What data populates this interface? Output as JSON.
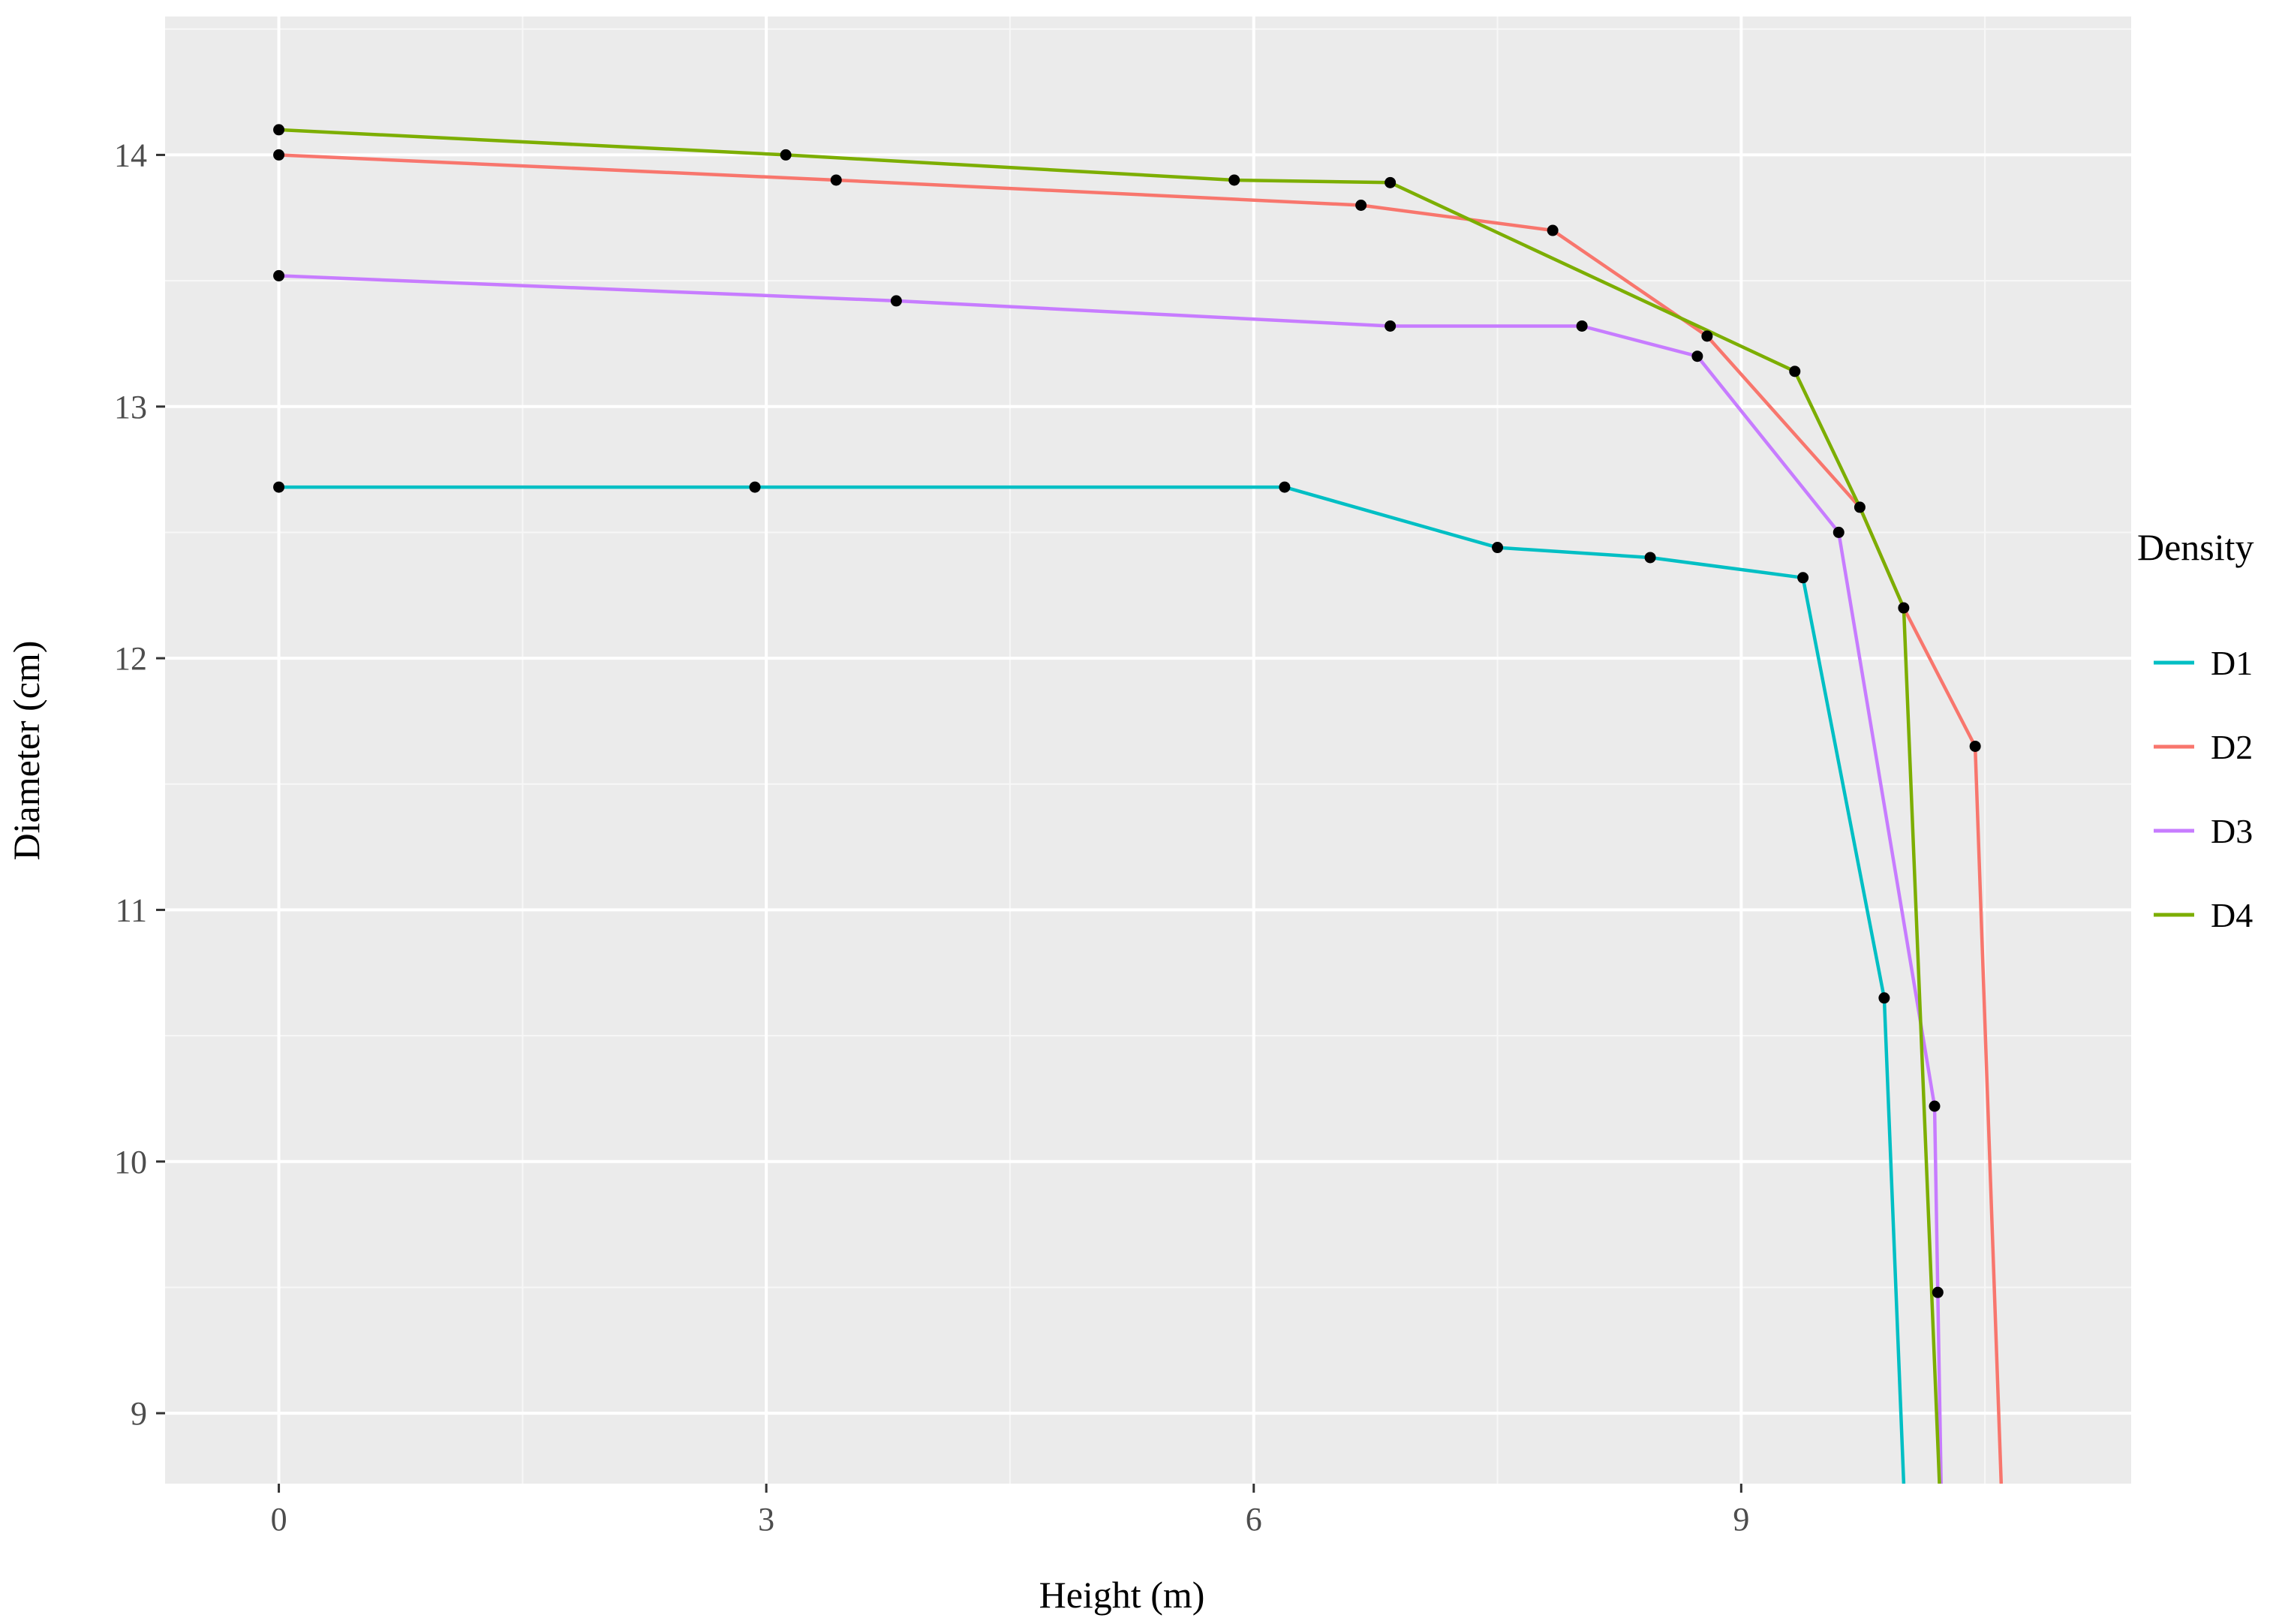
{
  "chart_data": {
    "type": "line",
    "xlabel": "Height (m)",
    "ylabel": "Diameter (cm)",
    "xlim": [
      -0.7,
      11.4
    ],
    "ylim": [
      8.72,
      14.55
    ],
    "x_ticks": [
      0,
      3,
      6,
      9
    ],
    "x_tick_labels": [
      "0",
      "3",
      "6",
      "9"
    ],
    "y_ticks": [
      9,
      10,
      11,
      12,
      13,
      14
    ],
    "y_tick_labels": [
      "9",
      "10",
      "11",
      "12",
      "13",
      "14"
    ],
    "grid": true,
    "legend": {
      "title": "Density",
      "placement": "right"
    },
    "series": [
      {
        "name": "D1",
        "color": "#00BFC4",
        "points": [
          [
            0,
            12.68
          ],
          [
            2.93,
            12.68
          ],
          [
            6.19,
            12.68
          ],
          [
            7.5,
            12.44
          ],
          [
            8.44,
            12.4
          ],
          [
            9.38,
            12.32
          ],
          [
            9.88,
            10.65
          ],
          [
            10.0,
            8.72
          ]
        ],
        "markers": [
          [
            0,
            12.68
          ],
          [
            2.93,
            12.68
          ],
          [
            6.19,
            12.68
          ],
          [
            7.5,
            12.44
          ],
          [
            8.44,
            12.4
          ],
          [
            9.38,
            12.32
          ],
          [
            9.88,
            10.65
          ]
        ]
      },
      {
        "name": "D2",
        "color": "#F8766D",
        "points": [
          [
            0,
            14.0
          ],
          [
            3.43,
            13.9
          ],
          [
            6.66,
            13.8
          ],
          [
            7.84,
            13.7
          ],
          [
            8.79,
            13.28
          ],
          [
            9.73,
            12.6
          ],
          [
            10.0,
            12.2
          ],
          [
            10.44,
            11.65
          ],
          [
            10.6,
            8.72
          ]
        ],
        "markers": [
          [
            0,
            14.0
          ],
          [
            3.43,
            13.9
          ],
          [
            6.66,
            13.8
          ],
          [
            7.84,
            13.7
          ],
          [
            8.79,
            13.28
          ],
          [
            9.73,
            12.6
          ],
          [
            10.0,
            12.2
          ],
          [
            10.44,
            11.65
          ]
        ]
      },
      {
        "name": "D3",
        "color": "#C77CFF",
        "points": [
          [
            0,
            13.52
          ],
          [
            3.8,
            13.42
          ],
          [
            6.84,
            13.32
          ],
          [
            8.02,
            13.32
          ],
          [
            8.73,
            13.2
          ],
          [
            9.6,
            12.5
          ],
          [
            10.19,
            10.22
          ],
          [
            10.21,
            9.48
          ],
          [
            10.23,
            8.72
          ]
        ],
        "markers": [
          [
            0,
            13.52
          ],
          [
            3.8,
            13.42
          ],
          [
            6.84,
            13.32
          ],
          [
            8.02,
            13.32
          ],
          [
            8.73,
            13.2
          ],
          [
            9.6,
            12.5
          ],
          [
            10.19,
            10.22
          ],
          [
            10.21,
            9.48
          ]
        ]
      },
      {
        "name": "D4",
        "color": "#7CAE00",
        "points": [
          [
            0,
            14.1
          ],
          [
            3.12,
            14.0
          ],
          [
            5.88,
            13.9
          ],
          [
            6.84,
            13.89
          ],
          [
            9.33,
            13.14
          ],
          [
            9.73,
            12.6
          ],
          [
            10.0,
            12.2
          ],
          [
            10.22,
            8.72
          ]
        ],
        "markers": [
          [
            0,
            14.1
          ],
          [
            3.12,
            14.0
          ],
          [
            5.88,
            13.9
          ],
          [
            6.84,
            13.89
          ],
          [
            9.33,
            13.14
          ]
        ]
      }
    ]
  }
}
